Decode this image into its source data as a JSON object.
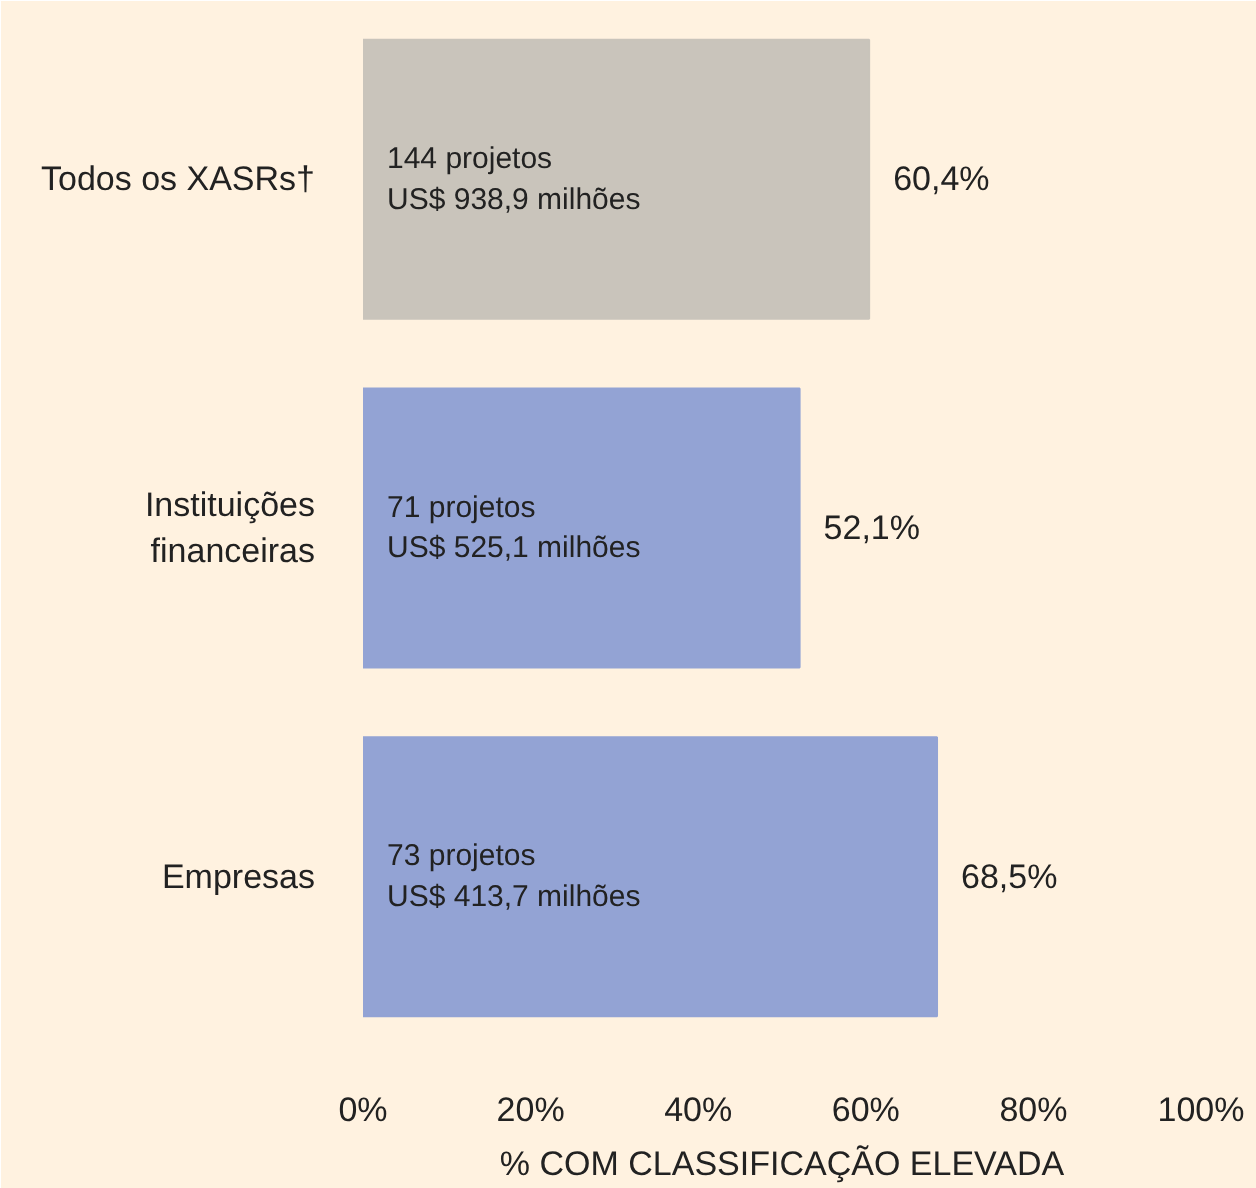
{
  "chart_data": {
    "type": "bar",
    "orientation": "horizontal",
    "categories": [
      "Todos os XASRs†",
      "Instituições financeiras",
      "Empresas"
    ],
    "values": [
      60.4,
      52.1,
      68.5
    ],
    "colors": [
      "#c9c4bb",
      "#93a3d4",
      "#93a3d4"
    ],
    "value_labels": [
      "60,4%",
      "52,1%",
      "68,5%"
    ],
    "xlim": [
      0,
      100
    ],
    "xticks": [
      {
        "value": 0,
        "label": "0%"
      },
      {
        "value": 20,
        "label": "20%"
      },
      {
        "value": 40,
        "label": "40%"
      },
      {
        "value": 60,
        "label": "60%"
      },
      {
        "value": 80,
        "label": "80%"
      },
      {
        "value": 100,
        "label": "100%"
      }
    ],
    "xlabel": "% COM CLASSIFICAÇÃO ELEVADA",
    "annotations": [
      "144 projetos\nUS$ 938,9 milhões",
      "71 projetos\nUS$ 525,1 milhões",
      "73 projetos\nUS$ 413,7 milhões"
    ],
    "grid": false
  }
}
